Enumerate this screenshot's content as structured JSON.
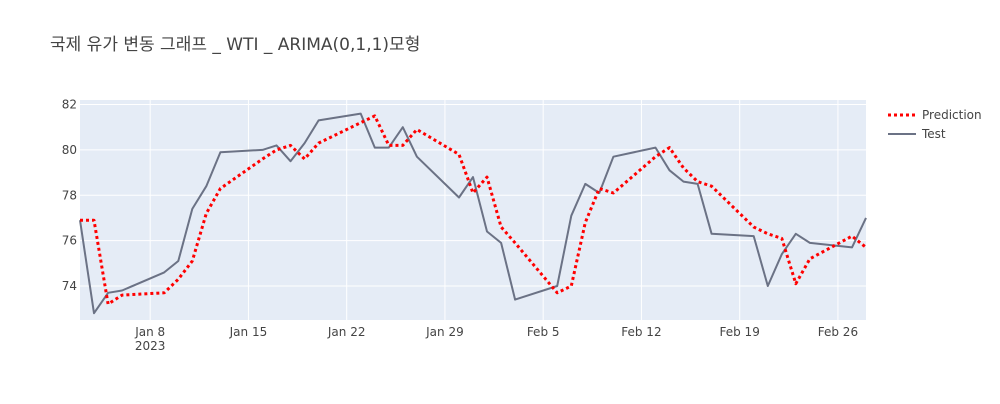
{
  "chart_data": {
    "type": "line",
    "title": "국제 유가 변동 그래프 _ WTI _ ARIMA(0,1,1)모형",
    "xlabel": "",
    "ylabel": "",
    "x_range": [
      "2023-01-03",
      "2023-02-28"
    ],
    "ylim": [
      72.5,
      82.2
    ],
    "y_ticks": [
      74,
      76,
      78,
      80,
      82
    ],
    "x_ticks": [
      {
        "date": "2023-01-08",
        "label": "Jan 8",
        "sublabel": "2023"
      },
      {
        "date": "2023-01-15",
        "label": "Jan 15",
        "sublabel": ""
      },
      {
        "date": "2023-01-22",
        "label": "Jan 22",
        "sublabel": ""
      },
      {
        "date": "2023-01-29",
        "label": "Jan 29",
        "sublabel": ""
      },
      {
        "date": "2023-02-05",
        "label": "Feb 5",
        "sublabel": ""
      },
      {
        "date": "2023-02-12",
        "label": "Feb 12",
        "sublabel": ""
      },
      {
        "date": "2023-02-19",
        "label": "Feb 19",
        "sublabel": ""
      },
      {
        "date": "2023-02-26",
        "label": "Feb 26",
        "sublabel": ""
      }
    ],
    "grid": true,
    "legend_position": "top-right",
    "series": [
      {
        "name": "Prediction",
        "color": "#ff0000",
        "style": "dotted",
        "points": [
          [
            "2023-01-03",
            76.9
          ],
          [
            "2023-01-04",
            76.9
          ],
          [
            "2023-01-05",
            73.2
          ],
          [
            "2023-01-06",
            73.6
          ],
          [
            "2023-01-09",
            73.7
          ],
          [
            "2023-01-10",
            74.3
          ],
          [
            "2023-01-11",
            75.1
          ],
          [
            "2023-01-12",
            77.2
          ],
          [
            "2023-01-13",
            78.3
          ],
          [
            "2023-01-16",
            79.6
          ],
          [
            "2023-01-17",
            80.0
          ],
          [
            "2023-01-18",
            80.2
          ],
          [
            "2023-01-19",
            79.6
          ],
          [
            "2023-01-20",
            80.3
          ],
          [
            "2023-01-23",
            81.2
          ],
          [
            "2023-01-24",
            81.5
          ],
          [
            "2023-01-25",
            80.2
          ],
          [
            "2023-01-26",
            80.2
          ],
          [
            "2023-01-27",
            80.9
          ],
          [
            "2023-01-30",
            79.8
          ],
          [
            "2023-01-31",
            78.1
          ],
          [
            "2023-02-01",
            78.8
          ],
          [
            "2023-02-02",
            76.6
          ],
          [
            "2023-02-03",
            75.9
          ],
          [
            "2023-02-06",
            73.7
          ],
          [
            "2023-02-07",
            74.0
          ],
          [
            "2023-02-08",
            76.8
          ],
          [
            "2023-02-09",
            78.3
          ],
          [
            "2023-02-10",
            78.1
          ],
          [
            "2023-02-13",
            79.7
          ],
          [
            "2023-02-14",
            80.1
          ],
          [
            "2023-02-15",
            79.2
          ],
          [
            "2023-02-16",
            78.6
          ],
          [
            "2023-02-17",
            78.4
          ],
          [
            "2023-02-20",
            76.6
          ],
          [
            "2023-02-21",
            76.3
          ],
          [
            "2023-02-22",
            76.1
          ],
          [
            "2023-02-23",
            74.1
          ],
          [
            "2023-02-24",
            75.2
          ],
          [
            "2023-02-27",
            76.2
          ],
          [
            "2023-02-28",
            75.7
          ]
        ]
      },
      {
        "name": "Test",
        "color": "#6b7285",
        "style": "solid",
        "points": [
          [
            "2023-01-03",
            76.9
          ],
          [
            "2023-01-04",
            72.8
          ],
          [
            "2023-01-05",
            73.7
          ],
          [
            "2023-01-06",
            73.8
          ],
          [
            "2023-01-09",
            74.6
          ],
          [
            "2023-01-10",
            75.1
          ],
          [
            "2023-01-11",
            77.4
          ],
          [
            "2023-01-12",
            78.4
          ],
          [
            "2023-01-13",
            79.9
          ],
          [
            "2023-01-16",
            80.0
          ],
          [
            "2023-01-17",
            80.2
          ],
          [
            "2023-01-18",
            79.5
          ],
          [
            "2023-01-19",
            80.3
          ],
          [
            "2023-01-20",
            81.3
          ],
          [
            "2023-01-23",
            81.6
          ],
          [
            "2023-01-24",
            80.1
          ],
          [
            "2023-01-25",
            80.1
          ],
          [
            "2023-01-26",
            81.0
          ],
          [
            "2023-01-27",
            79.7
          ],
          [
            "2023-01-30",
            77.9
          ],
          [
            "2023-01-31",
            78.8
          ],
          [
            "2023-02-01",
            76.4
          ],
          [
            "2023-02-02",
            75.9
          ],
          [
            "2023-02-03",
            73.4
          ],
          [
            "2023-02-06",
            74.0
          ],
          [
            "2023-02-07",
            77.1
          ],
          [
            "2023-02-08",
            78.5
          ],
          [
            "2023-02-09",
            78.1
          ],
          [
            "2023-02-10",
            79.7
          ],
          [
            "2023-02-13",
            80.1
          ],
          [
            "2023-02-14",
            79.1
          ],
          [
            "2023-02-15",
            78.6
          ],
          [
            "2023-02-16",
            78.5
          ],
          [
            "2023-02-17",
            76.3
          ],
          [
            "2023-02-20",
            76.2
          ],
          [
            "2023-02-21",
            74.0
          ],
          [
            "2023-02-22",
            75.4
          ],
          [
            "2023-02-23",
            76.3
          ],
          [
            "2023-02-24",
            75.9
          ],
          [
            "2023-02-27",
            75.7
          ],
          [
            "2023-02-28",
            77.0
          ]
        ]
      }
    ]
  }
}
